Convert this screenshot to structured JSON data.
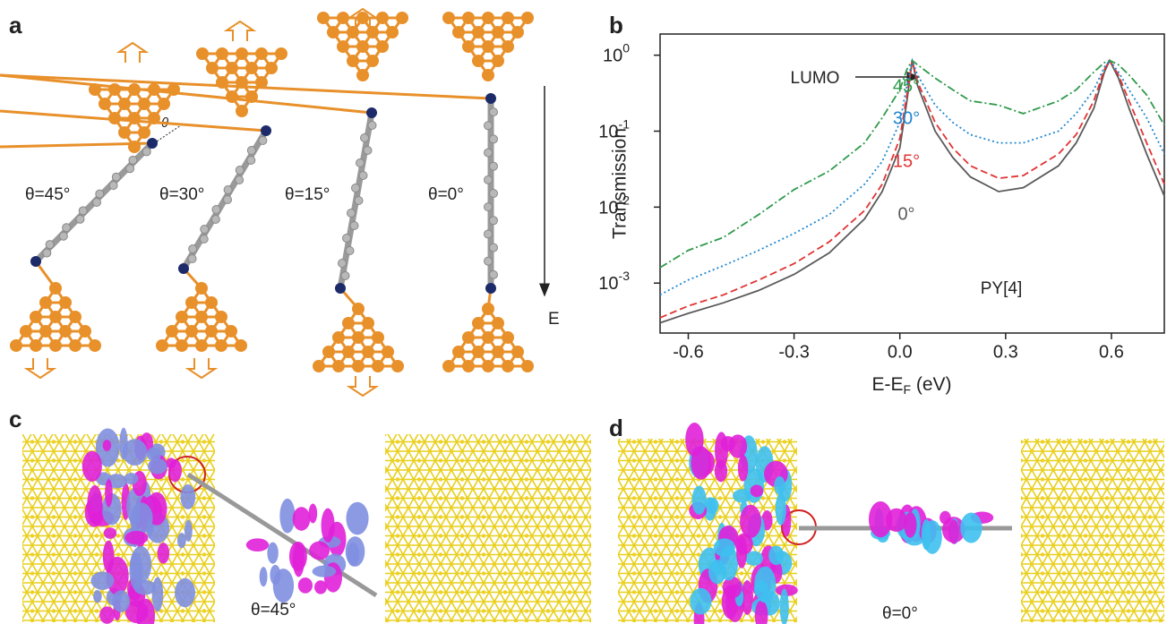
{
  "panel_labels": [
    "a",
    "b",
    "c",
    "d"
  ],
  "panel_a": {
    "angles": [
      "θ=45°",
      "θ=30°",
      "θ=15°",
      "θ=0°"
    ],
    "theta_symbol": "θ",
    "field_label": "E"
  },
  "panel_c": {
    "angle": "θ=45°"
  },
  "panel_d": {
    "angle": "θ=0°"
  },
  "chart_data": {
    "type": "line",
    "y_label": "Transmission",
    "x_label": [
      "E-E",
      "F",
      " (eV)"
    ],
    "log_y": true,
    "grid": false,
    "xlim": [
      -0.68,
      0.75
    ],
    "ylim": [
      0.00022,
      1.9
    ],
    "xticks": [
      -0.6,
      -0.3,
      {
        "value": 0,
        "label": "0.0"
      },
      0.3,
      0.6
    ],
    "yticks": [
      {
        "value": 1,
        "label": "10",
        "sup": "0"
      },
      {
        "value": 0.1,
        "label": "10",
        "sup": "-1"
      },
      {
        "value": 0.01,
        "label": "10",
        "sup": "-2"
      },
      {
        "value": 0.001,
        "label": "10",
        "sup": "-3"
      }
    ],
    "annotations": [
      "LUMO",
      "PY[4]"
    ],
    "x": [
      -0.68,
      -0.6,
      -0.5,
      -0.4,
      -0.3,
      -0.2,
      -0.1,
      -0.05,
      0,
      0.02,
      0.035,
      0.05,
      0.1,
      0.15,
      0.2,
      0.28,
      0.35,
      0.45,
      0.5,
      0.55,
      0.58,
      0.595,
      0.62,
      0.65,
      0.7,
      0.75
    ],
    "series": [
      {
        "name": "0°",
        "color": "#5a5a5a",
        "style": "solid",
        "values": [
          0.0003,
          0.0004,
          0.00055,
          0.0008,
          0.0013,
          0.0025,
          0.007,
          0.016,
          0.06,
          0.25,
          0.85,
          0.4,
          0.1,
          0.045,
          0.025,
          0.016,
          0.018,
          0.035,
          0.07,
          0.2,
          0.6,
          0.85,
          0.5,
          0.2,
          0.05,
          0.014
        ]
      },
      {
        "name": "15°",
        "color": "#e03434",
        "style": "dashed",
        "values": [
          0.00035,
          0.0005,
          0.0007,
          0.0011,
          0.0018,
          0.0035,
          0.009,
          0.02,
          0.08,
          0.3,
          0.85,
          0.45,
          0.13,
          0.06,
          0.035,
          0.024,
          0.026,
          0.05,
          0.09,
          0.25,
          0.65,
          0.85,
          0.55,
          0.25,
          0.07,
          0.02
        ]
      },
      {
        "name": "30°",
        "color": "#1f87d0",
        "style": "dotted",
        "values": [
          0.0007,
          0.0011,
          0.0017,
          0.0027,
          0.0045,
          0.008,
          0.02,
          0.04,
          0.13,
          0.4,
          0.85,
          0.55,
          0.22,
          0.13,
          0.09,
          0.07,
          0.07,
          0.1,
          0.17,
          0.35,
          0.7,
          0.85,
          0.6,
          0.35,
          0.15,
          0.05
        ]
      },
      {
        "name": "45°",
        "color": "#2f9a4c",
        "style": "dashdot",
        "values": [
          0.0016,
          0.0027,
          0.004,
          0.008,
          0.017,
          0.03,
          0.07,
          0.15,
          0.35,
          0.65,
          0.85,
          0.75,
          0.5,
          0.35,
          0.25,
          0.22,
          0.17,
          0.25,
          0.35,
          0.6,
          0.8,
          0.85,
          0.75,
          0.55,
          0.3,
          0.12
        ]
      }
    ]
  }
}
